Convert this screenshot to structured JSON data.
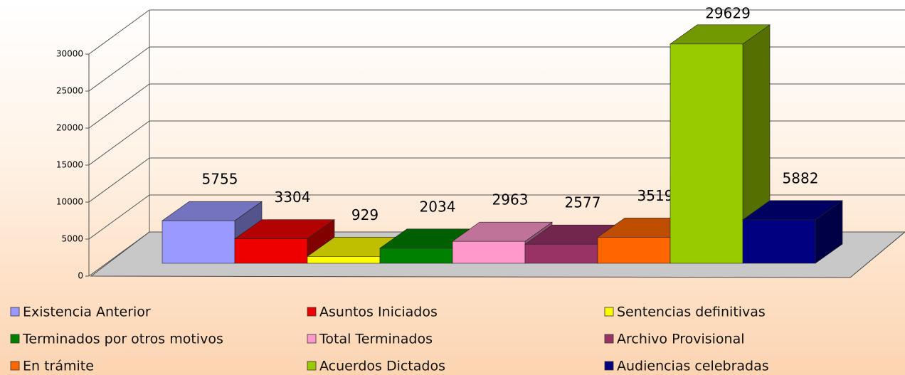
{
  "chart_data": {
    "type": "bar3d",
    "series": [
      {
        "name": "Existencia Anterior",
        "color": "#9999ff",
        "values": [
          5755
        ]
      },
      {
        "name": "Asuntos Iniciados",
        "color": "#ee0000",
        "values": [
          3304
        ]
      },
      {
        "name": "Sentencias definitivas",
        "color": "#ffff00",
        "values": [
          929
        ]
      },
      {
        "name": "Terminados por otros motivos",
        "color": "#008000",
        "values": [
          2034
        ]
      },
      {
        "name": "Total Terminados",
        "color": "#ff99cc",
        "values": [
          2963
        ]
      },
      {
        "name": "Archivo Provisional",
        "color": "#993366",
        "values": [
          2577
        ]
      },
      {
        "name": "En trámite",
        "color": "#ff6600",
        "values": [
          3519
        ]
      },
      {
        "name": "Acuerdos Dictados",
        "color": "#99cc00",
        "values": [
          29629
        ]
      },
      {
        "name": "Audiencias celebradas",
        "color": "#000080",
        "values": [
          5882
        ]
      }
    ],
    "ylim": [
      0,
      30000
    ],
    "yticks": [
      0,
      5000,
      10000,
      15000,
      20000,
      25000,
      30000
    ],
    "grid": true
  }
}
